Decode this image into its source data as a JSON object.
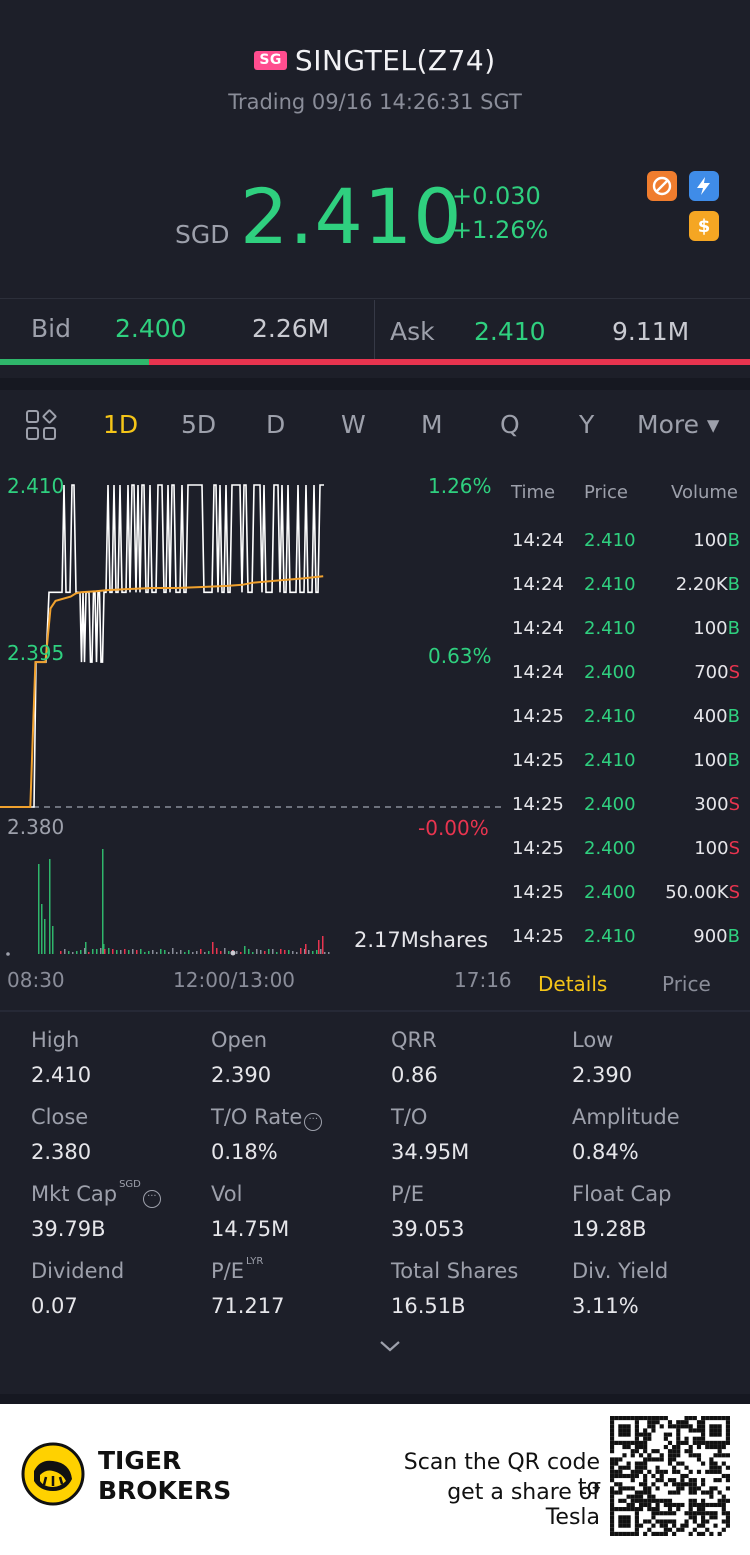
{
  "header": {
    "market_badge": "SG",
    "title": "SINGTEL(Z74)",
    "status": "Trading 09/16 14:26:31 SGT",
    "currency": "SGD",
    "price": "2.410",
    "change_abs": "+0.030",
    "change_pct": "+1.26%",
    "dividend_badge": "$",
    "colors": {
      "up": "#2fd07f",
      "down": "#e8344f",
      "accent": "#f5c518"
    }
  },
  "bidask": {
    "bid_label": "Bid",
    "bid_price": "2.400",
    "bid_volume": "2.26M",
    "ask_label": "Ask",
    "ask_price": "2.410",
    "ask_volume": "9.11M",
    "bid_ratio": 0.198
  },
  "tabs": [
    "1D",
    "5D",
    "D",
    "W",
    "M",
    "Q",
    "Y",
    "More ▾"
  ],
  "active_tab": "1D",
  "chart": {
    "price_high": "2.410",
    "price_mid": "2.395",
    "price_low": "2.380",
    "pct_high": "1.26%",
    "pct_mid": "0.63%",
    "pct_low": "-0.00%",
    "volume_label": "2.17Mshares",
    "time_open": "08:30",
    "time_mid": "12:00/13:00",
    "time_close": "17:16"
  },
  "chart_data": {
    "type": "line",
    "title": "",
    "ylim": [
      2.38,
      2.41
    ],
    "prev_close": 2.38,
    "series": [
      {
        "x": [
          0.0,
          0.06,
          0.07,
          0.09,
          0.1,
          0.11,
          0.14,
          0.15,
          0.16,
          0.19,
          0.21,
          0.25,
          0.3,
          0.35,
          0.4,
          0.45,
          0.48,
          0.5,
          0.55,
          0.6,
          0.64
        ],
        "y": [
          2.38,
          2.38,
          2.3935,
          2.3935,
          2.3985,
          2.3992,
          2.3996,
          2.3999,
          2.4,
          2.4001,
          2.4002,
          2.4003,
          2.4004,
          2.4004,
          2.4005,
          2.4006,
          2.4007,
          2.4009,
          2.4011,
          2.4013,
          2.4015
        ]
      }
    ]
  },
  "trades": {
    "headers": {
      "time": "Time",
      "price": "Price",
      "volume": "Volume"
    },
    "rows": [
      {
        "time": "14:24",
        "price": "2.410",
        "volume": "100",
        "side": "B"
      },
      {
        "time": "14:24",
        "price": "2.410",
        "volume": "2.20K",
        "side": "B"
      },
      {
        "time": "14:24",
        "price": "2.410",
        "volume": "100",
        "side": "B"
      },
      {
        "time": "14:24",
        "price": "2.400",
        "volume": "700",
        "side": "S"
      },
      {
        "time": "14:25",
        "price": "2.410",
        "volume": "400",
        "side": "B"
      },
      {
        "time": "14:25",
        "price": "2.410",
        "volume": "100",
        "side": "B"
      },
      {
        "time": "14:25",
        "price": "2.400",
        "volume": "300",
        "side": "S"
      },
      {
        "time": "14:25",
        "price": "2.400",
        "volume": "100",
        "side": "S"
      },
      {
        "time": "14:25",
        "price": "2.400",
        "volume": "50.00K",
        "side": "S"
      },
      {
        "time": "14:25",
        "price": "2.410",
        "volume": "900",
        "side": "B"
      }
    ],
    "tab_details": "Details",
    "tab_price": "Price"
  },
  "stats": [
    {
      "label": "High",
      "value": "2.410"
    },
    {
      "label": "Open",
      "value": "2.390"
    },
    {
      "label": "QRR",
      "value": "0.86"
    },
    {
      "label": "Low",
      "value": "2.390"
    },
    {
      "label": "Close",
      "value": "2.380"
    },
    {
      "label": "T/O Rate",
      "value": "0.18%",
      "info": "···"
    },
    {
      "label": "T/O",
      "value": "34.95M"
    },
    {
      "label": "Amplitude",
      "value": "0.84%"
    },
    {
      "label": "Mkt Cap",
      "value": "39.79B",
      "sup": "SGD",
      "info": "···"
    },
    {
      "label": "Vol",
      "value": "14.75M"
    },
    {
      "label": "P/E",
      "value": "39.053"
    },
    {
      "label": "Float Cap",
      "value": "19.28B"
    },
    {
      "label": "Dividend",
      "value": "0.07"
    },
    {
      "label": "P/E",
      "value": "71.217",
      "sup": "LYR"
    },
    {
      "label": "Total Shares",
      "value": "16.51B"
    },
    {
      "label": "Div. Yield",
      "value": "3.11%"
    }
  ],
  "footer": {
    "brand_line1": "TIGER",
    "brand_line2": "BROKERS",
    "promo_line1": "Scan the QR code to",
    "promo_line2": "get a share of Tesla"
  }
}
